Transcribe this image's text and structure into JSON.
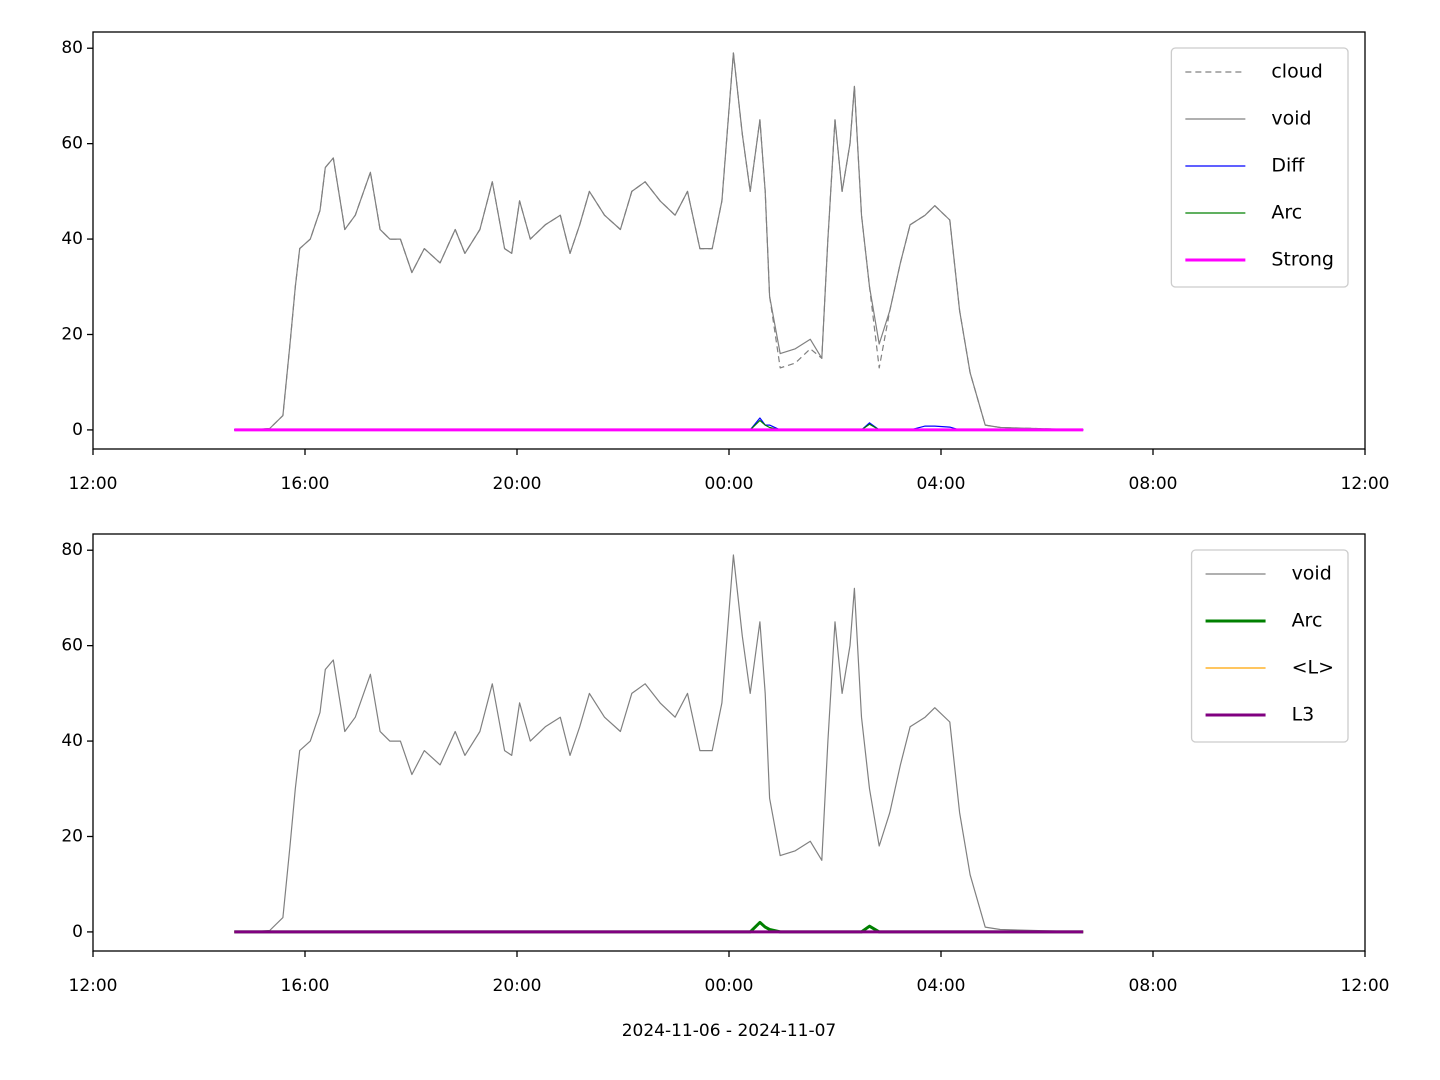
{
  "chart_data": [
    {
      "type": "line",
      "x": [
        "2024-11-06T14:40",
        "2024-11-06T15:00",
        "2024-11-06T15:20",
        "2024-11-06T15:35",
        "2024-11-06T15:43",
        "2024-11-06T15:49",
        "2024-11-06T15:54",
        "2024-11-06T16:06",
        "2024-11-06T16:17",
        "2024-11-06T16:23",
        "2024-11-06T16:32",
        "2024-11-06T16:45",
        "2024-11-06T16:57",
        "2024-11-06T17:14",
        "2024-11-06T17:25",
        "2024-11-06T17:36",
        "2024-11-06T17:48",
        "2024-11-06T18:01",
        "2024-11-06T18:15",
        "2024-11-06T18:33",
        "2024-11-06T18:50",
        "2024-11-06T19:01",
        "2024-11-06T19:18",
        "2024-11-06T19:32",
        "2024-11-06T19:46",
        "2024-11-06T19:54",
        "2024-11-06T20:03",
        "2024-11-06T20:15",
        "2024-11-06T20:32",
        "2024-11-06T20:49",
        "2024-11-06T21:00",
        "2024-11-06T21:11",
        "2024-11-06T21:22",
        "2024-11-06T21:39",
        "2024-11-06T21:57",
        "2024-11-06T22:10",
        "2024-11-06T22:25",
        "2024-11-06T22:42",
        "2024-11-06T22:59",
        "2024-11-06T23:13",
        "2024-11-06T23:27",
        "2024-11-06T23:41",
        "2024-11-06T23:52",
        "2024-11-07T00:05",
        "2024-11-07T00:15",
        "2024-11-07T00:24",
        "2024-11-07T00:35",
        "2024-11-07T00:41",
        "2024-11-07T00:46",
        "2024-11-07T00:58",
        "2024-11-07T01:15",
        "2024-11-07T01:32",
        "2024-11-07T01:45",
        "2024-11-07T01:52",
        "2024-11-07T02:00",
        "2024-11-07T02:08",
        "2024-11-07T02:17",
        "2024-11-07T02:22",
        "2024-11-07T02:30",
        "2024-11-07T02:39",
        "2024-11-07T02:50",
        "2024-11-07T03:02",
        "2024-11-07T03:14",
        "2024-11-07T03:25",
        "2024-11-07T03:42",
        "2024-11-07T03:53",
        "2024-11-07T04:10",
        "2024-11-07T04:21",
        "2024-11-07T04:33",
        "2024-11-07T04:50",
        "2024-11-07T05:07",
        "2024-11-07T06:41"
      ],
      "series": [
        {
          "name": "cloud",
          "color": "#808080",
          "linestyle": "dashed",
          "linewidth": 1.2,
          "values": [
            0,
            0,
            0.3,
            3,
            18,
            30,
            38,
            40,
            46,
            55,
            57,
            42,
            45,
            54,
            42,
            40,
            40,
            33,
            38,
            35,
            42,
            37,
            42,
            52,
            38,
            37,
            48,
            40,
            43,
            45,
            37,
            43,
            50,
            45,
            42,
            50,
            52,
            48,
            45,
            50,
            38,
            38,
            48,
            79,
            62,
            50,
            65,
            50,
            28,
            13,
            14,
            17,
            15,
            40,
            65,
            50,
            60,
            72,
            45,
            30,
            13,
            25,
            35,
            43,
            45,
            47,
            44,
            25,
            12,
            1,
            0.5,
            0
          ]
        },
        {
          "name": "void",
          "color": "#808080",
          "linestyle": "solid",
          "linewidth": 1.2,
          "values": [
            0,
            0,
            0.3,
            3,
            18,
            30,
            38,
            40,
            46,
            55,
            57,
            42,
            45,
            54,
            42,
            40,
            40,
            33,
            38,
            35,
            42,
            37,
            42,
            52,
            38,
            37,
            48,
            40,
            43,
            45,
            37,
            43,
            50,
            45,
            42,
            50,
            52,
            48,
            45,
            50,
            38,
            38,
            48,
            79,
            62,
            50,
            65,
            50,
            28,
            16,
            17,
            19,
            15,
            40,
            65,
            50,
            60,
            72,
            45,
            30,
            18,
            25,
            35,
            43,
            45,
            47,
            44,
            25,
            12,
            1,
            0.5,
            0
          ]
        },
        {
          "name": "Diff",
          "color": "#0000ff",
          "linestyle": "solid",
          "linewidth": 1.2,
          "values": [
            0,
            0,
            0,
            0,
            0,
            0,
            0,
            0,
            0,
            0,
            0,
            0,
            0,
            0,
            0,
            0,
            0,
            0,
            0,
            0,
            0,
            0,
            0,
            0,
            0,
            0,
            0,
            0,
            0,
            0,
            0,
            0,
            0,
            0,
            0,
            0,
            0,
            0,
            0,
            0,
            0,
            0,
            0,
            0,
            0,
            0,
            2.5,
            1,
            1,
            0,
            0,
            0,
            0,
            0,
            0,
            0,
            0,
            0,
            0,
            1.5,
            0,
            0,
            0,
            0,
            0.8,
            0.8,
            0.6,
            0,
            0,
            0,
            0,
            0
          ]
        },
        {
          "name": "Arc",
          "color": "#008000",
          "linestyle": "solid",
          "linewidth": 1.2,
          "values": [
            0,
            0,
            0,
            0,
            0,
            0,
            0,
            0,
            0,
            0,
            0,
            0,
            0,
            0,
            0,
            0,
            0,
            0,
            0,
            0,
            0,
            0,
            0,
            0,
            0,
            0,
            0,
            0,
            0,
            0,
            0,
            0,
            0,
            0,
            0,
            0,
            0,
            0,
            0,
            0,
            0,
            0,
            0,
            0,
            0,
            0,
            2,
            1,
            0.5,
            0,
            0,
            0,
            0,
            0,
            0,
            0,
            0,
            0,
            0,
            1.2,
            0,
            0,
            0,
            0,
            0,
            0,
            0,
            0,
            0,
            0,
            0,
            0
          ]
        },
        {
          "name": "Strong",
          "color": "#ff00ff",
          "linestyle": "solid",
          "linewidth": 3,
          "values": [
            0,
            0,
            0,
            0,
            0,
            0,
            0,
            0,
            0,
            0,
            0,
            0,
            0,
            0,
            0,
            0,
            0,
            0,
            0,
            0,
            0,
            0,
            0,
            0,
            0,
            0,
            0,
            0,
            0,
            0,
            0,
            0,
            0,
            0,
            0,
            0,
            0,
            0,
            0,
            0,
            0,
            0,
            0,
            0,
            0,
            0,
            0,
            0,
            0,
            0,
            0,
            0,
            0,
            0,
            0,
            0,
            0,
            0,
            0,
            0,
            0,
            0,
            0,
            0,
            0,
            0,
            0,
            0,
            0,
            0,
            0,
            0
          ]
        }
      ],
      "xlim": [
        "2024-11-06T12:00",
        "2024-11-07T12:00"
      ],
      "xticks": [
        {
          "value": "2024-11-06T12:00",
          "label": "12:00"
        },
        {
          "value": "2024-11-06T16:00",
          "label": "16:00"
        },
        {
          "value": "2024-11-06T20:00",
          "label": "20:00"
        },
        {
          "value": "2024-11-07T00:00",
          "label": "00:00"
        },
        {
          "value": "2024-11-07T04:00",
          "label": "04:00"
        },
        {
          "value": "2024-11-07T08:00",
          "label": "08:00"
        },
        {
          "value": "2024-11-07T12:00",
          "label": "12:00"
        }
      ],
      "ylim": [
        -4,
        83.4
      ],
      "yticks": [
        0,
        20,
        40,
        60,
        80
      ],
      "legend": "upper right"
    },
    {
      "type": "line",
      "x": [
        "2024-11-06T14:40",
        "2024-11-06T15:00",
        "2024-11-06T15:20",
        "2024-11-06T15:35",
        "2024-11-06T15:43",
        "2024-11-06T15:49",
        "2024-11-06T15:54",
        "2024-11-06T16:06",
        "2024-11-06T16:17",
        "2024-11-06T16:23",
        "2024-11-06T16:32",
        "2024-11-06T16:45",
        "2024-11-06T16:57",
        "2024-11-06T17:14",
        "2024-11-06T17:25",
        "2024-11-06T17:36",
        "2024-11-06T17:48",
        "2024-11-06T18:01",
        "2024-11-06T18:15",
        "2024-11-06T18:33",
        "2024-11-06T18:50",
        "2024-11-06T19:01",
        "2024-11-06T19:18",
        "2024-11-06T19:32",
        "2024-11-06T19:46",
        "2024-11-06T19:54",
        "2024-11-06T20:03",
        "2024-11-06T20:15",
        "2024-11-06T20:32",
        "2024-11-06T20:49",
        "2024-11-06T21:00",
        "2024-11-06T21:11",
        "2024-11-06T21:22",
        "2024-11-06T21:39",
        "2024-11-06T21:57",
        "2024-11-06T22:10",
        "2024-11-06T22:25",
        "2024-11-06T22:42",
        "2024-11-06T22:59",
        "2024-11-06T23:13",
        "2024-11-06T23:27",
        "2024-11-06T23:41",
        "2024-11-06T23:52",
        "2024-11-07T00:05",
        "2024-11-07T00:15",
        "2024-11-07T00:24",
        "2024-11-07T00:35",
        "2024-11-07T00:41",
        "2024-11-07T00:46",
        "2024-11-07T00:58",
        "2024-11-07T01:15",
        "2024-11-07T01:32",
        "2024-11-07T01:45",
        "2024-11-07T01:52",
        "2024-11-07T02:00",
        "2024-11-07T02:08",
        "2024-11-07T02:17",
        "2024-11-07T02:22",
        "2024-11-07T02:30",
        "2024-11-07T02:39",
        "2024-11-07T02:50",
        "2024-11-07T03:02",
        "2024-11-07T03:14",
        "2024-11-07T03:25",
        "2024-11-07T03:42",
        "2024-11-07T03:53",
        "2024-11-07T04:10",
        "2024-11-07T04:21",
        "2024-11-07T04:33",
        "2024-11-07T04:50",
        "2024-11-07T05:07",
        "2024-11-07T06:41"
      ],
      "series": [
        {
          "name": "void",
          "color": "#808080",
          "linestyle": "solid",
          "linewidth": 1.2,
          "values": [
            0,
            0,
            0.3,
            3,
            18,
            30,
            38,
            40,
            46,
            55,
            57,
            42,
            45,
            54,
            42,
            40,
            40,
            33,
            38,
            35,
            42,
            37,
            42,
            52,
            38,
            37,
            48,
            40,
            43,
            45,
            37,
            43,
            50,
            45,
            42,
            50,
            52,
            48,
            45,
            50,
            38,
            38,
            48,
            79,
            62,
            50,
            65,
            50,
            28,
            16,
            17,
            19,
            15,
            40,
            65,
            50,
            60,
            72,
            45,
            30,
            18,
            25,
            35,
            43,
            45,
            47,
            44,
            25,
            12,
            1,
            0.5,
            0
          ]
        },
        {
          "name": "Arc",
          "color": "#008000",
          "linestyle": "solid",
          "linewidth": 3,
          "values": [
            0,
            0,
            0,
            0,
            0,
            0,
            0,
            0,
            0,
            0,
            0,
            0,
            0,
            0,
            0,
            0,
            0,
            0,
            0,
            0,
            0,
            0,
            0,
            0,
            0,
            0,
            0,
            0,
            0,
            0,
            0,
            0,
            0,
            0,
            0,
            0,
            0,
            0,
            0,
            0,
            0,
            0,
            0,
            0,
            0,
            0,
            2,
            1,
            0.5,
            0,
            0,
            0,
            0,
            0,
            0,
            0,
            0,
            0,
            0,
            1.2,
            0,
            0,
            0,
            0,
            0,
            0,
            0,
            0,
            0,
            0,
            0,
            0
          ]
        },
        {
          "name": "<L>",
          "color": "#ffa500",
          "linestyle": "solid",
          "linewidth": 1.2,
          "values": [
            0,
            0,
            0,
            0,
            0,
            0,
            0,
            0,
            0,
            0,
            0,
            0,
            0,
            0,
            0,
            0,
            0,
            0,
            0,
            0,
            0,
            0,
            0,
            0,
            0,
            0,
            0,
            0,
            0,
            0,
            0,
            0,
            0,
            0,
            0,
            0,
            0,
            0,
            0,
            0,
            0,
            0,
            0,
            0,
            0,
            0,
            0,
            0,
            0,
            0,
            0,
            0,
            0,
            0,
            0,
            0,
            0,
            0,
            0,
            0,
            0,
            0,
            0,
            0,
            0,
            0,
            0,
            0,
            0,
            0,
            0,
            0
          ]
        },
        {
          "name": "L3",
          "color": "#800080",
          "linestyle": "solid",
          "linewidth": 3,
          "values": [
            0,
            0,
            0,
            0,
            0,
            0,
            0,
            0,
            0,
            0,
            0,
            0,
            0,
            0,
            0,
            0,
            0,
            0,
            0,
            0,
            0,
            0,
            0,
            0,
            0,
            0,
            0,
            0,
            0,
            0,
            0,
            0,
            0,
            0,
            0,
            0,
            0,
            0,
            0,
            0,
            0,
            0,
            0,
            0,
            0,
            0,
            0,
            0,
            0,
            0,
            0,
            0,
            0,
            0,
            0,
            0,
            0,
            0,
            0,
            0,
            0,
            0,
            0,
            0,
            0,
            0,
            0,
            0,
            0,
            0,
            0,
            0
          ]
        }
      ],
      "xlim": [
        "2024-11-06T12:00",
        "2024-11-07T12:00"
      ],
      "xticks": [
        {
          "value": "2024-11-06T12:00",
          "label": "12:00"
        },
        {
          "value": "2024-11-06T16:00",
          "label": "16:00"
        },
        {
          "value": "2024-11-06T20:00",
          "label": "20:00"
        },
        {
          "value": "2024-11-07T00:00",
          "label": "00:00"
        },
        {
          "value": "2024-11-07T04:00",
          "label": "04:00"
        },
        {
          "value": "2024-11-07T08:00",
          "label": "08:00"
        },
        {
          "value": "2024-11-07T12:00",
          "label": "12:00"
        }
      ],
      "ylim": [
        -4,
        83.4
      ],
      "yticks": [
        0,
        20,
        40,
        60,
        80
      ],
      "legend": "upper right",
      "xlabel": "2024-11-06 - 2024-11-07"
    }
  ]
}
